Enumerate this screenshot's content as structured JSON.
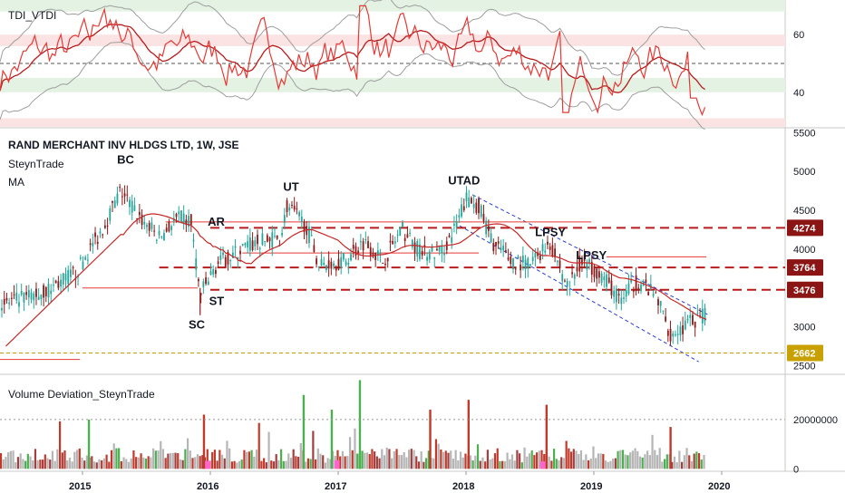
{
  "panels": {
    "indicator_title": "TDI_VTDI",
    "price_title": "RAND MERCHANT INV HLDGS LTD, 1W, JSE",
    "price_sub1": "SteynTrade",
    "price_sub2": "MA",
    "volume_title": "Volume Deviation_SteynTrade"
  },
  "colors": {
    "up_candle": "#26a69a",
    "down_candle": "#8b1a1a",
    "ma_line": "#c62828",
    "level_line": "#b71c1c",
    "level_tag": "#8b1414",
    "support_tag": "#c8a000",
    "channel": "#2d3bd8",
    "tdi_fast": "#e53935",
    "tdi_slow": "#b71c1c",
    "band": "#9e9e9e",
    "green_zone": "#e4f2e4",
    "red_zone": "#fbe3e3"
  },
  "chart_data": [
    {
      "type": "line",
      "name": "TDI_VTDI",
      "y_ticks": [
        60,
        40
      ],
      "ylim": [
        28,
        72
      ],
      "midline": 50,
      "zones": [
        {
          "from": 68,
          "to": 72,
          "color": "green"
        },
        {
          "from": 56,
          "to": 60,
          "color": "red"
        },
        {
          "from": 40,
          "to": 45,
          "color": "green"
        },
        {
          "from": 28,
          "to": 31,
          "color": "red"
        }
      ]
    },
    {
      "type": "candlestick",
      "name": "RAND MERCHANT INV HLDGS LTD, 1W, JSE",
      "x_ticks": [
        "2015",
        "2016",
        "2017",
        "2018",
        "2019",
        "2020"
      ],
      "y_ticks": [
        5500,
        5000,
        4500,
        4000,
        3500,
        3000,
        2500
      ],
      "ylim": [
        2400,
        5550
      ],
      "levels": [
        {
          "label": "4274",
          "value": 4274
        },
        {
          "label": "3764",
          "value": 3764
        },
        {
          "label": "3476",
          "value": 3476
        },
        {
          "label": "2662",
          "value": 2662
        }
      ],
      "annotations": [
        "BC",
        "AR",
        "UT",
        "ST",
        "SC",
        "UTAD",
        "LPSY",
        "LPSY"
      ],
      "trend": [
        {
          "x": 2014.4,
          "y": 3300
        },
        {
          "x": 2014.7,
          "y": 3450
        },
        {
          "x": 2014.95,
          "y": 3700
        },
        {
          "x": 2015.15,
          "y": 4250
        },
        {
          "x": 2015.3,
          "y": 4750
        },
        {
          "x": 2015.45,
          "y": 4400
        },
        {
          "x": 2015.6,
          "y": 4150
        },
        {
          "x": 2015.75,
          "y": 4400
        },
        {
          "x": 2015.85,
          "y": 4350
        },
        {
          "x": 2015.92,
          "y": 3400
        },
        {
          "x": 2016.05,
          "y": 3800
        },
        {
          "x": 2016.3,
          "y": 4050
        },
        {
          "x": 2016.55,
          "y": 4150
        },
        {
          "x": 2016.6,
          "y": 4550
        },
        {
          "x": 2016.75,
          "y": 4300
        },
        {
          "x": 2016.85,
          "y": 3800
        },
        {
          "x": 2017.05,
          "y": 3850
        },
        {
          "x": 2017.2,
          "y": 4100
        },
        {
          "x": 2017.35,
          "y": 3850
        },
        {
          "x": 2017.5,
          "y": 4250
        },
        {
          "x": 2017.65,
          "y": 3950
        },
        {
          "x": 2017.8,
          "y": 3950
        },
        {
          "x": 2017.9,
          "y": 4200
        },
        {
          "x": 2018.0,
          "y": 4650
        },
        {
          "x": 2018.1,
          "y": 4550
        },
        {
          "x": 2018.2,
          "y": 4100
        },
        {
          "x": 2018.35,
          "y": 3850
        },
        {
          "x": 2018.5,
          "y": 3800
        },
        {
          "x": 2018.65,
          "y": 4100
        },
        {
          "x": 2018.8,
          "y": 3500
        },
        {
          "x": 2018.9,
          "y": 3850
        },
        {
          "x": 2019.05,
          "y": 3700
        },
        {
          "x": 2019.2,
          "y": 3350
        },
        {
          "x": 2019.35,
          "y": 3600
        },
        {
          "x": 2019.5,
          "y": 3350
        },
        {
          "x": 2019.6,
          "y": 2900
        },
        {
          "x": 2019.75,
          "y": 3050
        },
        {
          "x": 2019.88,
          "y": 3150
        }
      ]
    },
    {
      "type": "bar",
      "name": "Volume Deviation_SteynTrade",
      "y_ticks": [
        20000000,
        0
      ],
      "y_tick_labels": [
        "20000000",
        "0"
      ],
      "ylim": [
        -1000000,
        38000000
      ]
    }
  ]
}
